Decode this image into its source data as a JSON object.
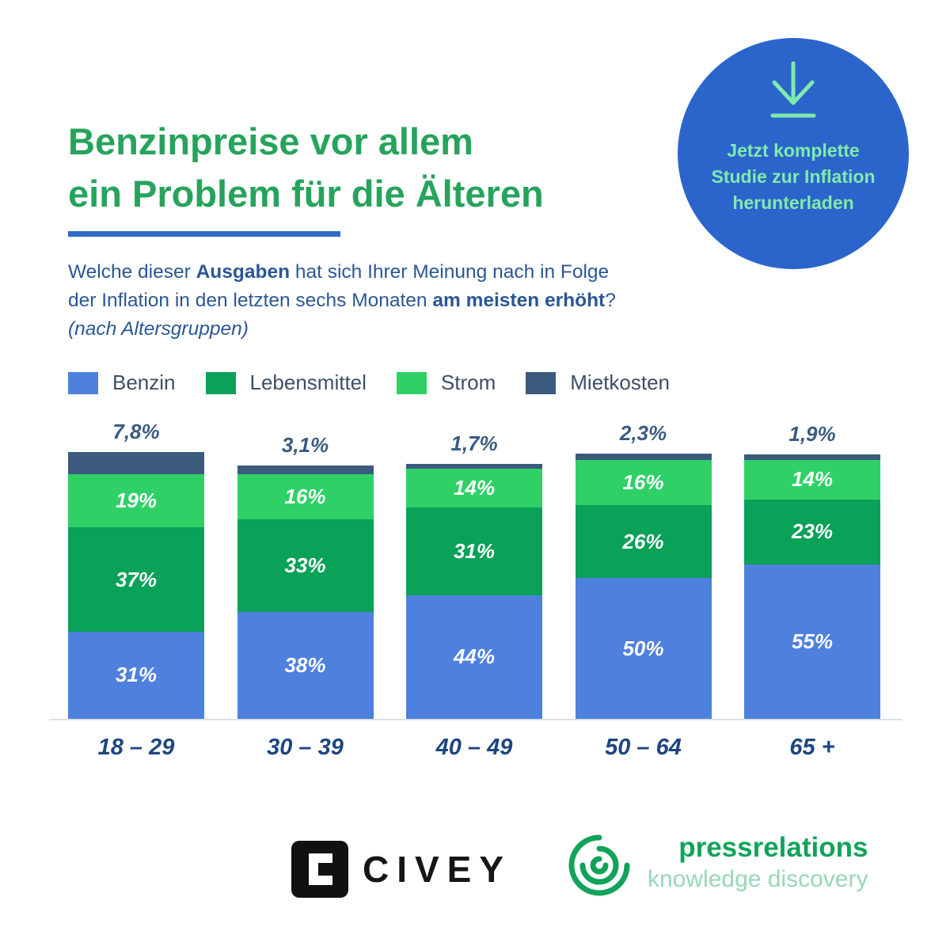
{
  "header": {
    "title_line1": "Benzinpreise vor allem",
    "title_line2": "ein Problem für die Älteren",
    "question_line1_pre": "Welche dieser ",
    "question_line1_bold": "Ausgaben",
    "question_line1_post": " hat sich Ihrer Meinung nach in Folge",
    "question_line2_pre": "der Inflation in den letzten sechs Monaten ",
    "question_line2_bold": "am meisten erhöht",
    "question_line2_post": "?",
    "question_line3": "(nach Altersgruppen)",
    "title_color": "#26a35c",
    "underline_color": "#2e6ac6"
  },
  "badge": {
    "line1": "Jetzt komplette",
    "line2": "Studie zur Inflation",
    "line3": "herunterladen",
    "bg_color": "#2b65cb",
    "text_color": "#80eaae"
  },
  "legend": {
    "items": [
      {
        "label": "Benzin",
        "color": "#4e80de"
      },
      {
        "label": "Lebensmittel",
        "color": "#0aa158"
      },
      {
        "label": "Strom",
        "color": "#2fd167"
      },
      {
        "label": "Mietkosten",
        "color": "#3c5a7e"
      }
    ]
  },
  "chart_data": {
    "type": "bar",
    "stacked": true,
    "unit": "%",
    "categories": [
      "18 – 29",
      "30 – 39",
      "40 – 49",
      "50 – 64",
      "65 +"
    ],
    "series": [
      {
        "name": "Benzin",
        "color": "#4e80de",
        "values": [
          31,
          38,
          44,
          50,
          55
        ],
        "labels": [
          "31%",
          "38%",
          "44%",
          "50%",
          "55%"
        ]
      },
      {
        "name": "Lebensmittel",
        "color": "#0aa158",
        "values": [
          37,
          33,
          31,
          26,
          23
        ],
        "labels": [
          "37%",
          "33%",
          "31%",
          "26%",
          "23%"
        ]
      },
      {
        "name": "Strom",
        "color": "#2fd167",
        "values": [
          19,
          16,
          14,
          16,
          14
        ],
        "labels": [
          "19%",
          "16%",
          "14%",
          "16%",
          "14%"
        ]
      },
      {
        "name": "Mietkosten",
        "color": "#3c5a7e",
        "values": [
          7.8,
          3.1,
          1.7,
          2.3,
          1.9
        ],
        "labels": [
          "",
          "",
          "",
          "",
          ""
        ]
      }
    ],
    "top_labels": [
      "7,8%",
      "3,1%",
      "1,7%",
      "2,3%",
      "1,9%"
    ],
    "legend_position": "top",
    "grid": false
  },
  "footer": {
    "civey": "CIVEY",
    "pressrelations": "pressrelations",
    "knowledge": "knowledge discovery"
  }
}
